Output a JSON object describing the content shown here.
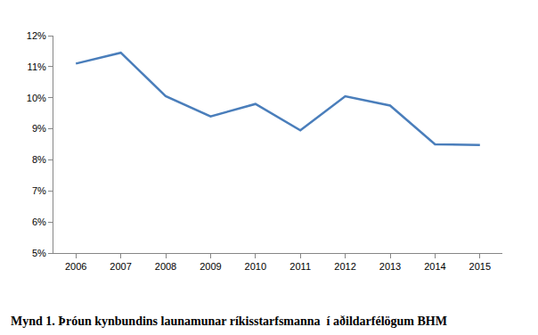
{
  "chart_data": {
    "type": "line",
    "title": "Mynd 1. Þróun kynbundins launamunar ríkisstarfsmanna  í aðildarfélögum BHM",
    "categories": [
      "2006",
      "2007",
      "2008",
      "2009",
      "2010",
      "2011",
      "2012",
      "2013",
      "2014",
      "2015"
    ],
    "values": [
      11.1,
      11.45,
      10.05,
      9.4,
      9.8,
      8.95,
      10.05,
      9.75,
      8.5,
      8.48
    ],
    "color": "#4a7ebb",
    "ylim": [
      5,
      12
    ],
    "yticks": [
      {
        "value": 5,
        "label": "5%"
      },
      {
        "value": 6,
        "label": "6%"
      },
      {
        "value": 7,
        "label": "7%"
      },
      {
        "value": 8,
        "label": "8%"
      },
      {
        "value": 9,
        "label": "9%"
      },
      {
        "value": 10,
        "label": "10%"
      },
      {
        "value": 11,
        "label": "11%"
      },
      {
        "value": 12,
        "label": "12%"
      }
    ],
    "grid": false
  }
}
